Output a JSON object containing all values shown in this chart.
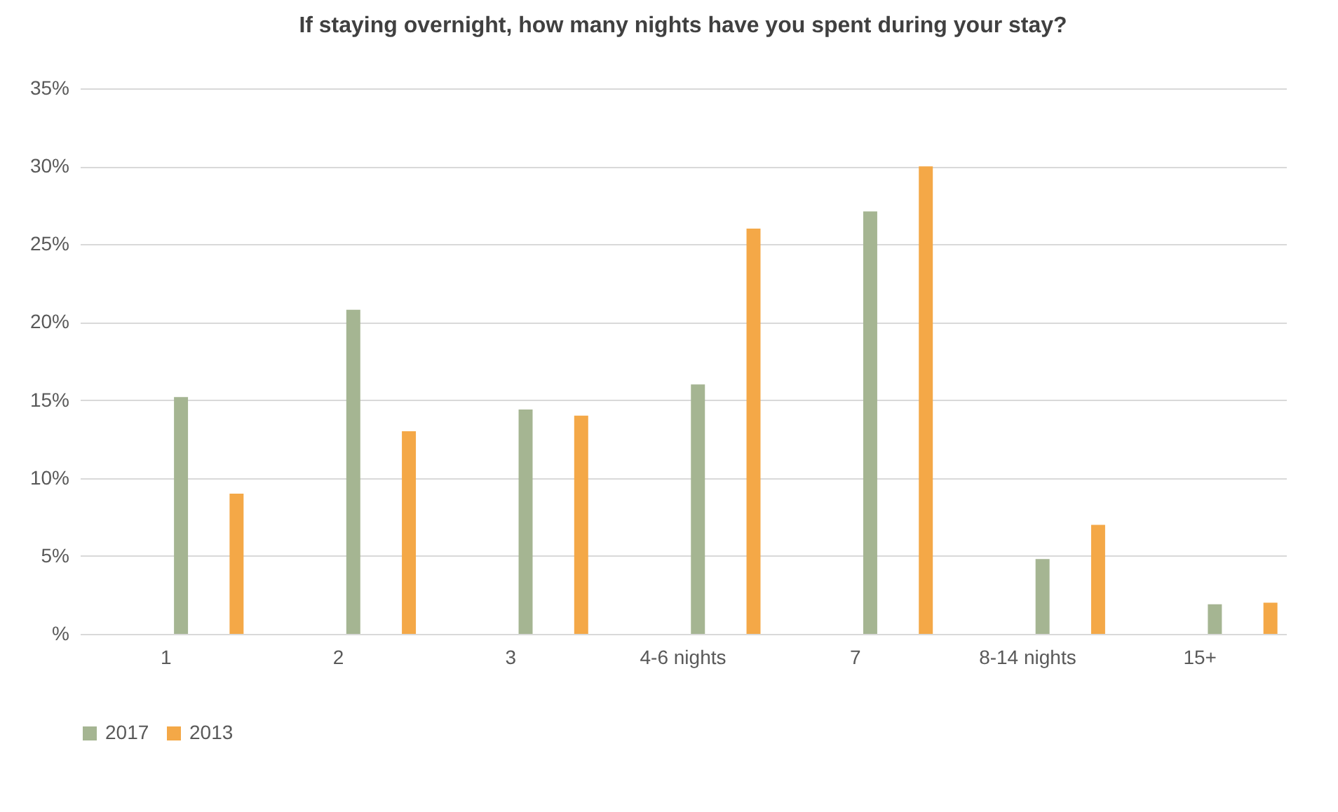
{
  "chart_data": {
    "type": "bar",
    "title": "If staying overnight, how many nights have you spent during your stay?",
    "categories": [
      "1",
      "2",
      "3",
      "4-6 nights",
      "7",
      "8-14 nights",
      "15+"
    ],
    "series": [
      {
        "name": "2017",
        "color": "#a5b592",
        "values": [
          15.2,
          20.8,
          14.4,
          16,
          27.1,
          4.8,
          1.9
        ]
      },
      {
        "name": "2013",
        "color": "#f4a847",
        "values": [
          9,
          13,
          14,
          26,
          30,
          7,
          2
        ]
      }
    ],
    "ylim": [
      0,
      35
    ],
    "yticks": [
      {
        "value": 0,
        "label": "%"
      },
      {
        "value": 5,
        "label": "5%"
      },
      {
        "value": 10,
        "label": "10%"
      },
      {
        "value": 15,
        "label": "15%"
      },
      {
        "value": 20,
        "label": "20%"
      },
      {
        "value": 25,
        "label": "25%"
      },
      {
        "value": 30,
        "label": "30%"
      },
      {
        "value": 35,
        "label": "35%"
      }
    ],
    "grid": "y",
    "legend": "bottom"
  }
}
